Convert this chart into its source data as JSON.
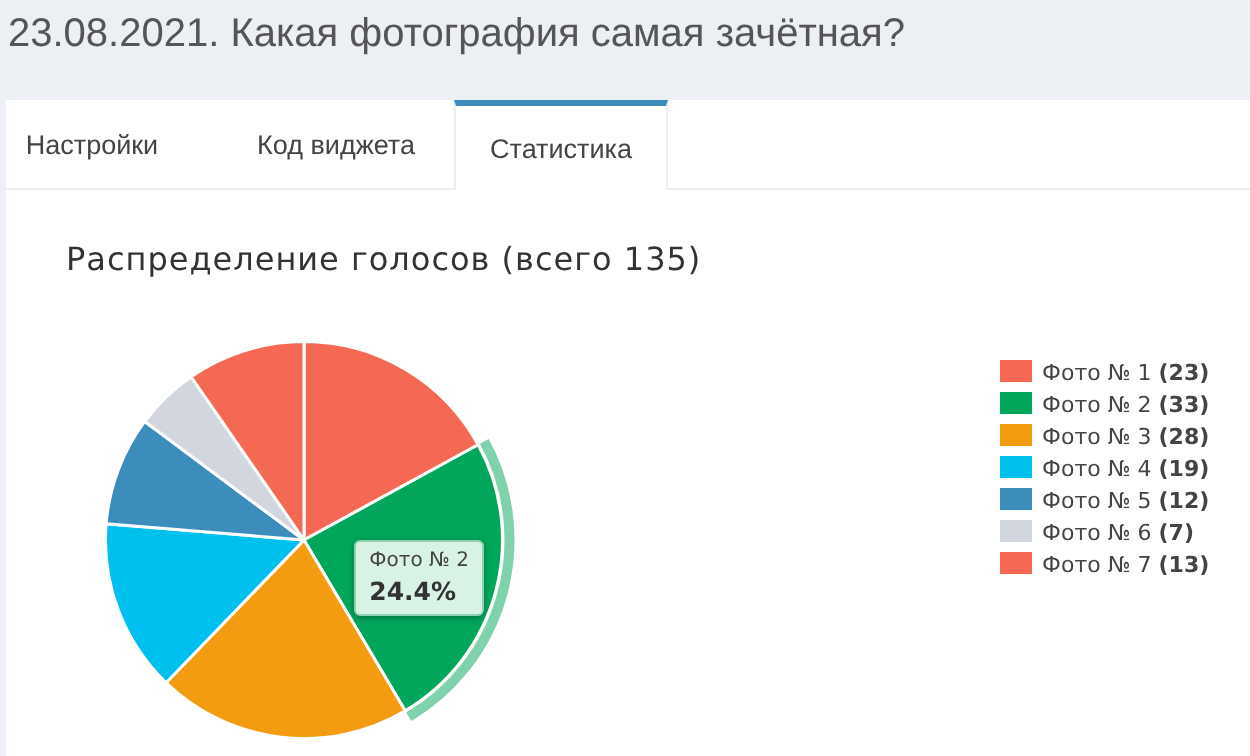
{
  "chart_data": {
    "type": "pie",
    "title": "23.08.2021. Какая фотография самая зачётная?",
    "subtitle": "Распределение голосов (всего 135)",
    "categories": [
      "Фото № 1",
      "Фото № 2",
      "Фото № 3",
      "Фото № 4",
      "Фото № 5",
      "Фото № 6",
      "Фото № 7"
    ],
    "values": [
      23,
      33,
      28,
      19,
      12,
      7,
      13
    ],
    "colors": [
      "#f56954",
      "#00a65a",
      "#f39c12",
      "#00c0ef",
      "#3c8dbc",
      "#d2d6de",
      "#f56954"
    ],
    "value_labels": [
      "(23)",
      "(33)",
      "(28)",
      "(19)",
      "(12)",
      "(7)",
      "(13)"
    ],
    "legend": "right",
    "annotations": [
      "Настройки",
      "Код виджета",
      "Статистика",
      {
        "text": "24.4%",
        "x": "Фото № 2"
      }
    ]
  }
}
